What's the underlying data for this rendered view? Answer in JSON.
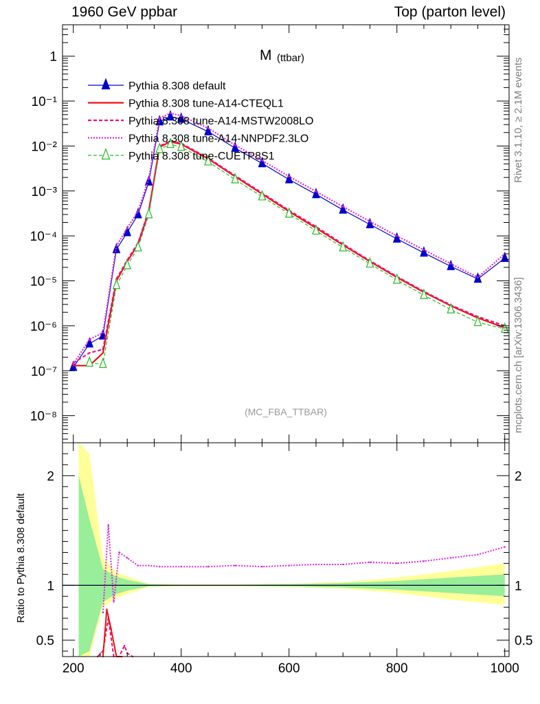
{
  "header": {
    "left": "1960 GeV ppbar",
    "right": "Top (parton level)"
  },
  "side": {
    "rivet": "Rivet 3.1.10, ≥ 2.1M events",
    "mcplots": "mcplots.cern.ch [arXiv:1306.3436]"
  },
  "colors": {
    "default": "#0000cc",
    "cteql1": "#ee1111",
    "mstw": "#ee1177",
    "nnpdf": "#dd22dd",
    "cuetp8s1": "#22bb22",
    "band_inner": "#99ee99",
    "band_outer": "#ffff99"
  },
  "chart_data": {
    "type": "line",
    "title": "M",
    "title_sub": "(ttbar)",
    "watermark": "(MC_FBA_TTBAR)",
    "ylabel_ratio": "Ratio to Pythia 8.308 default",
    "xlim": [
      180,
      1008
    ],
    "ylim_main": [
      2.5e-09,
      5
    ],
    "y_log": true,
    "ylim_ratio": [
      0.35,
      2.3
    ],
    "x_ticks": [
      "200",
      "400",
      "600",
      "800",
      "1000"
    ],
    "y_ticks_main": [
      "10⁻⁸",
      "10⁻⁷",
      "10⁻⁶",
      "10⁻⁵",
      "10⁻⁴",
      "10⁻³",
      "10⁻²",
      "10⁻¹",
      "1"
    ],
    "y_ticks_ratio": [
      "0.5",
      "1",
      "2"
    ],
    "legend_position": "top-left",
    "series": [
      {
        "name": "Pythia 8.308 default",
        "style": "default",
        "x": [
          200,
          230,
          255,
          280,
          300,
          320,
          340,
          360,
          380,
          400,
          450,
          500,
          550,
          600,
          650,
          700,
          750,
          800,
          850,
          900,
          950,
          1000
        ],
        "y": [
          1.2e-07,
          4e-07,
          6e-07,
          5e-05,
          0.00012,
          0.0003,
          0.0016,
          0.035,
          0.045,
          0.04,
          0.021,
          0.009,
          0.0041,
          0.0018,
          0.00084,
          0.00038,
          0.00018,
          8.6e-05,
          4.2e-05,
          2.1e-05,
          1.1e-05,
          3.2e-05
        ]
      },
      {
        "name": "Pythia 8.308 tune-A14-CTEQL1",
        "style": "cteql1",
        "x": [
          200,
          230,
          255,
          280,
          300,
          320,
          340,
          360,
          380,
          400,
          450,
          500,
          550,
          600,
          650,
          700,
          750,
          800,
          850,
          900,
          950,
          1000
        ],
        "y": [
          1.3e-07,
          1.3e-07,
          2.5e-07,
          1e-05,
          2.7e-05,
          6.5e-05,
          0.00035,
          0.0095,
          0.0125,
          0.011,
          0.0052,
          0.0021,
          0.00086,
          0.00035,
          0.00015,
          6.3e-05,
          2.7e-05,
          1.2e-05,
          5.6e-06,
          2.8e-06,
          1.5e-06,
          9e-07
        ]
      },
      {
        "name": "Pythia 8.308 tune-A14-MSTW2008LO",
        "style": "mstw",
        "x": [
          200,
          230,
          255,
          280,
          300,
          320,
          340,
          360,
          380,
          400,
          450,
          500,
          550,
          600,
          650,
          700,
          750,
          800,
          850,
          900,
          950,
          1000
        ],
        "y": [
          1.5e-07,
          2.5e-07,
          3e-07,
          1.1e-05,
          2.9e-05,
          7e-05,
          0.00037,
          0.01,
          0.013,
          0.0115,
          0.0054,
          0.0022,
          0.0009,
          0.00037,
          0.00016,
          6.6e-05,
          2.8e-05,
          1.25e-05,
          5.8e-06,
          2.9e-06,
          1.6e-06,
          1e-06
        ]
      },
      {
        "name": "Pythia 8.308 tune-A14-NNPDF2.3LO",
        "style": "nnpdf",
        "x": [
          200,
          230,
          255,
          280,
          300,
          320,
          340,
          360,
          380,
          400,
          450,
          500,
          550,
          600,
          650,
          700,
          750,
          800,
          850,
          900,
          950,
          1000
        ],
        "y": [
          1.4e-07,
          5e-07,
          7e-07,
          6e-05,
          0.00015,
          0.00035,
          0.0019,
          0.042,
          0.054,
          0.047,
          0.025,
          0.0105,
          0.0048,
          0.0021,
          0.00098,
          0.00045,
          0.00021,
          0.0001,
          4.9e-05,
          2.4e-05,
          1.2e-05,
          4e-05
        ]
      },
      {
        "name": "Pythia 8.308 tune-CUETP8S1",
        "style": "cuetp8s1",
        "x": [
          200,
          230,
          255,
          280,
          300,
          320,
          340,
          360,
          380,
          400,
          450,
          500,
          550,
          600,
          650,
          700,
          750,
          800,
          850,
          900,
          950,
          1000
        ],
        "y": [
          null,
          1.5e-07,
          1.4e-07,
          8e-06,
          2.2e-05,
          5.5e-05,
          0.0003,
          0.0085,
          0.011,
          0.0095,
          0.0045,
          0.0018,
          0.00075,
          0.00031,
          0.00013,
          5.5e-05,
          2.4e-05,
          1.05e-05,
          4.8e-06,
          2.3e-06,
          1.2e-06,
          8.5e-07
        ]
      }
    ],
    "ratio_series": [
      {
        "style": "nnpdf",
        "x": [
          255,
          265,
          275,
          285,
          300,
          320,
          340,
          360,
          400,
          450,
          500,
          550,
          600,
          650,
          700,
          750,
          800,
          850,
          900,
          950,
          1000
        ],
        "y": [
          0.75,
          1.55,
          0.85,
          1.3,
          1.25,
          1.18,
          1.18,
          1.17,
          1.17,
          1.17,
          1.18,
          1.17,
          1.18,
          1.19,
          1.19,
          1.21,
          1.2,
          1.22,
          1.25,
          1.28,
          1.35
        ]
      },
      {
        "style": "mstw",
        "x": [
          245,
          255,
          265,
          275,
          285,
          295,
          300,
          310
        ],
        "y": [
          0.2,
          0.4,
          0.7,
          0.35,
          0.3,
          0.45,
          0.38,
          0.33
        ]
      },
      {
        "style": "cteql1",
        "x": [
          255,
          262,
          270,
          280,
          290
        ],
        "y": [
          0.3,
          0.78,
          0.6,
          0.35,
          0.3
        ]
      }
    ],
    "ratio_band_inner": {
      "x": [
        210,
        230,
        255,
        280,
        300,
        340,
        400,
        500,
        600,
        700,
        800,
        900,
        1000
      ],
      "lo": [
        0.1,
        0.4,
        0.85,
        0.92,
        0.95,
        0.99,
        0.995,
        0.995,
        0.99,
        0.98,
        0.96,
        0.93,
        0.9
      ],
      "hi": [
        2.0,
        1.6,
        1.15,
        1.08,
        1.05,
        1.01,
        1.005,
        1.005,
        1.01,
        1.02,
        1.04,
        1.07,
        1.1
      ]
    },
    "ratio_band_outer": {
      "x": [
        210,
        230,
        255,
        280,
        300,
        340,
        400,
        500,
        600,
        700,
        800,
        900,
        1000
      ],
      "lo": [
        0.1,
        0.3,
        0.8,
        0.88,
        0.92,
        0.985,
        0.99,
        0.99,
        0.985,
        0.97,
        0.93,
        0.87,
        0.82
      ],
      "hi": [
        2.3,
        2.2,
        1.25,
        1.12,
        1.08,
        1.015,
        1.01,
        1.01,
        1.015,
        1.03,
        1.07,
        1.13,
        1.2
      ]
    }
  }
}
